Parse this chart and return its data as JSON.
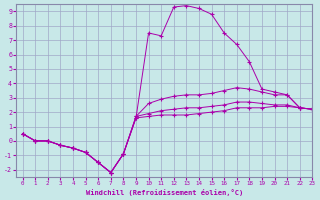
{
  "xlabel": "Windchill (Refroidissement éolien,°C)",
  "xlim": [
    -0.5,
    23
  ],
  "ylim": [
    -2.5,
    9.5
  ],
  "xticks": [
    0,
    1,
    2,
    3,
    4,
    5,
    6,
    7,
    8,
    9,
    10,
    11,
    12,
    13,
    14,
    15,
    16,
    17,
    18,
    19,
    20,
    21,
    22,
    23
  ],
  "yticks": [
    -2,
    -1,
    0,
    1,
    2,
    3,
    4,
    5,
    6,
    7,
    8,
    9
  ],
  "background_color": "#c8e8e8",
  "grid_color": "#a0a8c8",
  "line_color": "#aa00aa",
  "lines": [
    [
      0.5,
      0.0,
      0.0,
      -0.3,
      -0.5,
      -0.8,
      -1.5,
      -2.2,
      -0.9,
      1.6,
      1.7,
      1.8,
      1.8,
      1.8,
      1.9,
      2.0,
      2.1,
      2.3,
      2.3,
      2.3,
      2.4,
      2.4,
      2.3,
      2.2
    ],
    [
      0.5,
      0.0,
      0.0,
      -0.3,
      -0.5,
      -0.8,
      -1.5,
      -2.2,
      -0.9,
      1.6,
      7.5,
      7.3,
      9.3,
      9.4,
      9.2,
      8.8,
      7.5,
      6.7,
      5.5,
      3.6,
      3.4,
      3.2,
      2.3,
      2.2
    ],
    [
      0.5,
      0.0,
      0.0,
      -0.3,
      -0.5,
      -0.8,
      -1.5,
      -2.2,
      -0.9,
      1.7,
      1.9,
      2.1,
      2.2,
      2.3,
      2.3,
      2.4,
      2.5,
      2.7,
      2.7,
      2.6,
      2.5,
      2.5,
      2.3,
      2.2
    ],
    [
      0.5,
      0.0,
      0.0,
      -0.3,
      -0.5,
      -0.8,
      -1.5,
      -2.2,
      -0.9,
      1.7,
      2.6,
      2.9,
      3.1,
      3.2,
      3.2,
      3.3,
      3.5,
      3.7,
      3.6,
      3.4,
      3.2,
      3.2,
      2.3,
      2.2
    ]
  ]
}
